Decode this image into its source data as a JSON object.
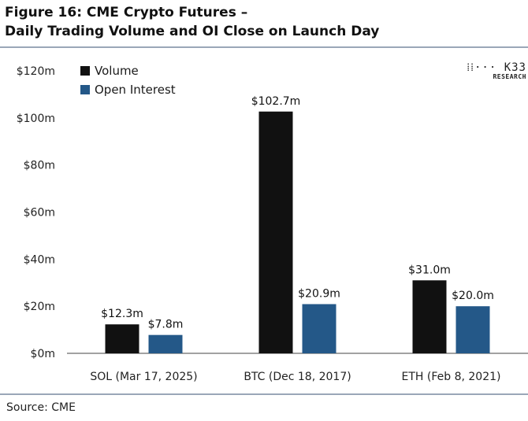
{
  "figure": {
    "title_line1": "Figure 16: CME Crypto Futures –",
    "title_line2": "Daily Trading Volume and OI Close on Launch Day",
    "source": "Source: CME",
    "logo_text": "K33",
    "logo_sub": "RESEARCH"
  },
  "chart_data": {
    "type": "bar",
    "categories": [
      "SOL (Mar 17, 2025)",
      "BTC (Dec 18, 2017)",
      "ETH (Feb 8, 2021)"
    ],
    "series": [
      {
        "name": "Volume",
        "values": [
          12.3,
          102.7,
          31.0
        ],
        "labels": [
          "$12.3m",
          "$102.7m",
          "$31.0m"
        ],
        "color": "#111111"
      },
      {
        "name": "Open Interest",
        "values": [
          7.8,
          20.9,
          20.0
        ],
        "labels": [
          "$7.8m",
          "$20.9m",
          "$20.0m"
        ],
        "color": "#245888"
      }
    ],
    "ylim": [
      0,
      120
    ],
    "yticks": [
      0,
      20,
      40,
      60,
      80,
      100,
      120
    ],
    "ytick_labels": [
      "$0m",
      "$20m",
      "$40m",
      "$60m",
      "$80m",
      "$100m",
      "$120m"
    ],
    "legend_position": "top-left",
    "grid": false
  }
}
